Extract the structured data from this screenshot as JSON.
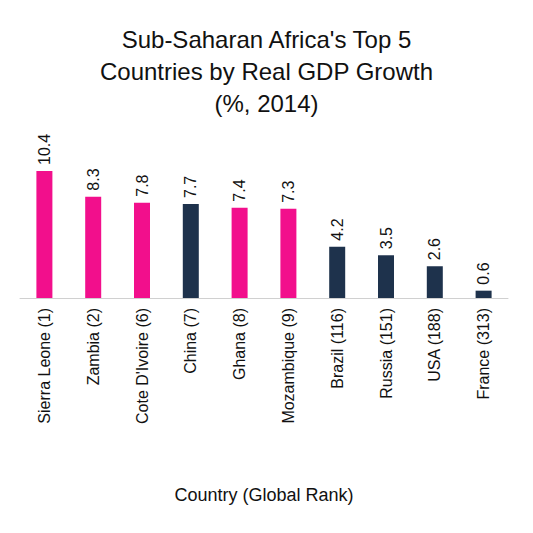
{
  "chart_data": {
    "type": "bar",
    "title": "Sub-Saharan Africa's Top 5\nCountries by Real GDP Growth\n(%, 2014)",
    "x_label": "Country (Global Rank)",
    "categories": [
      "Sierra Leone (1)",
      "Zambia (2)",
      "Cote D'Ivoire (6)",
      "China (7)",
      "Ghana (8)",
      "Mozambique (9)",
      "Brazil (116)",
      "Russia (151)",
      "USA (188)",
      "France (313)"
    ],
    "values": [
      10.4,
      8.3,
      7.8,
      7.7,
      7.4,
      7.3,
      4.2,
      3.5,
      2.6,
      0.6
    ],
    "colors": [
      "#f20f8c",
      "#f20f8c",
      "#f20f8c",
      "#1e324c",
      "#f20f8c",
      "#f20f8c",
      "#1e324c",
      "#1e324c",
      "#1e324c",
      "#1e324c"
    ],
    "ylim": [
      0,
      10.4
    ],
    "grid": false,
    "data_labels": true,
    "tick_labels": "x"
  }
}
